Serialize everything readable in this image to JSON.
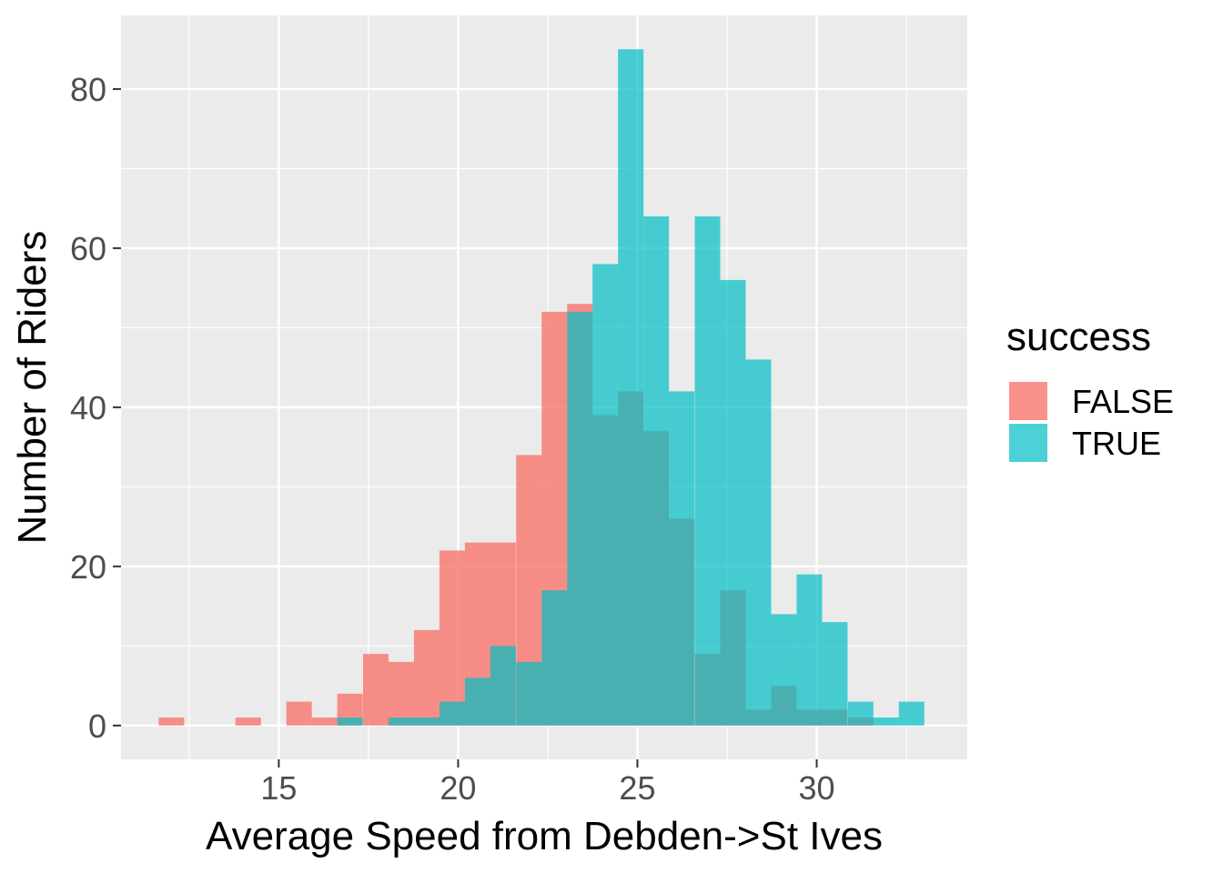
{
  "chart_data": {
    "type": "bar",
    "subtype": "overlapping-histogram",
    "xlabel": "Average Speed from Debden->St Ives",
    "ylabel": "Number of Riders",
    "xlim": [
      10.6,
      34.2
    ],
    "ylim": [
      -4.25,
      89.25
    ],
    "x_ticks": [
      15,
      20,
      25,
      30
    ],
    "y_ticks": [
      0,
      20,
      40,
      60,
      80
    ],
    "grid": true,
    "legend_position": "right",
    "legend_title": "success",
    "bins_left_edges": [
      11.65,
      12.37,
      13.08,
      13.79,
      14.5,
      15.21,
      15.92,
      16.63,
      17.35,
      18.06,
      18.77,
      19.48,
      20.19,
      20.9,
      21.62,
      22.33,
      23.04,
      23.75,
      24.46,
      25.17,
      25.88,
      26.6,
      27.31,
      28.02,
      28.73,
      29.44,
      30.15,
      30.87,
      31.58,
      32.29
    ],
    "bin_width": 0.711,
    "series": [
      {
        "name": "FALSE",
        "color": "#F8766D",
        "values": [
          1,
          0,
          0,
          1,
          0,
          3,
          1,
          4,
          9,
          8,
          12,
          22,
          23,
          23,
          34,
          52,
          53,
          39,
          42,
          37,
          26,
          9,
          17,
          2,
          5,
          2,
          2,
          1,
          0,
          0
        ]
      },
      {
        "name": "TRUE",
        "color": "#00BFC4",
        "values": [
          0,
          0,
          0,
          0,
          0,
          0,
          0,
          1,
          0,
          1,
          1,
          3,
          6,
          10,
          8,
          17,
          52,
          58,
          85,
          64,
          42,
          64,
          56,
          46,
          14,
          19,
          13,
          3,
          1,
          3
        ]
      }
    ],
    "panel_background": "#EBEBEB",
    "fill_opacity": 0.8
  }
}
